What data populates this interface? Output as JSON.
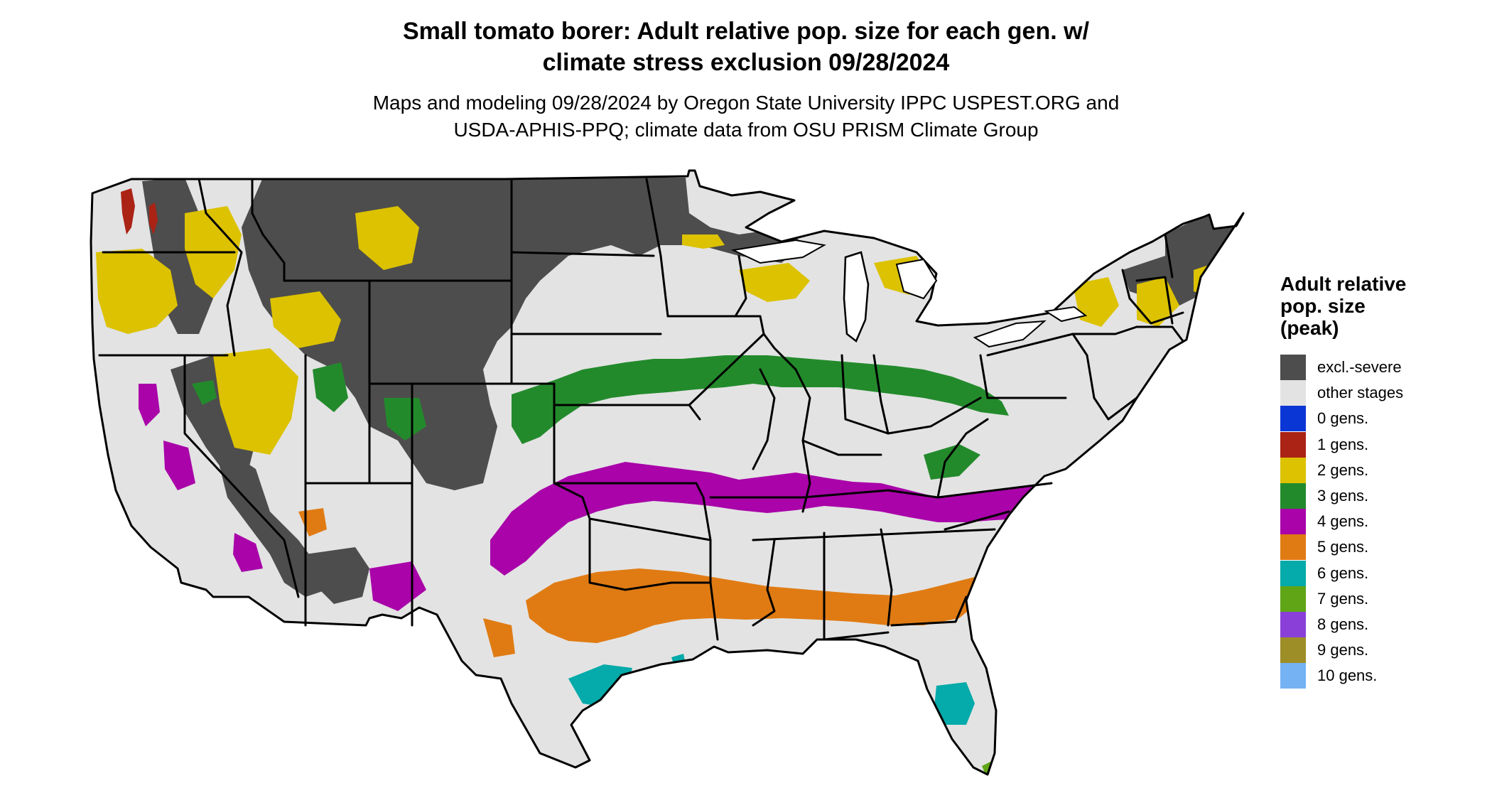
{
  "title": {
    "line1": "Small tomato borer: Adult relative pop. size for each gen. w/",
    "line2": "climate stress exclusion 09/28/2024"
  },
  "subtitle": {
    "line1": "Maps and modeling 09/28/2024 by Oregon State University IPPC USPEST.ORG and",
    "line2": "USDA-APHIS-PPQ; climate data from OSU PRISM Climate Group"
  },
  "legend": {
    "title_line1": "Adult relative",
    "title_line2": "pop. size",
    "title_line3": "(peak)",
    "items": [
      {
        "label": "excl.-severe",
        "color": "#4d4d4d"
      },
      {
        "label": "other stages",
        "color": "#e3e3e3"
      },
      {
        "label": "0 gens.",
        "color": "#0a36d6"
      },
      {
        "label": "1 gens.",
        "color": "#aa2315"
      },
      {
        "label": "2 gens.",
        "color": "#dcc200"
      },
      {
        "label": "3 gens.",
        "color": "#238a2c"
      },
      {
        "label": "4 gens.",
        "color": "#a903a9"
      },
      {
        "label": "5 gens.",
        "color": "#e07b13"
      },
      {
        "label": "6 gens.",
        "color": "#05aaaa"
      },
      {
        "label": "7 gens.",
        "color": "#5fa516"
      },
      {
        "label": "8 gens.",
        "color": "#8a40d8"
      },
      {
        "label": "9 gens.",
        "color": "#9e8e28"
      },
      {
        "label": "10 gens.",
        "color": "#74b2f4"
      }
    ]
  }
}
